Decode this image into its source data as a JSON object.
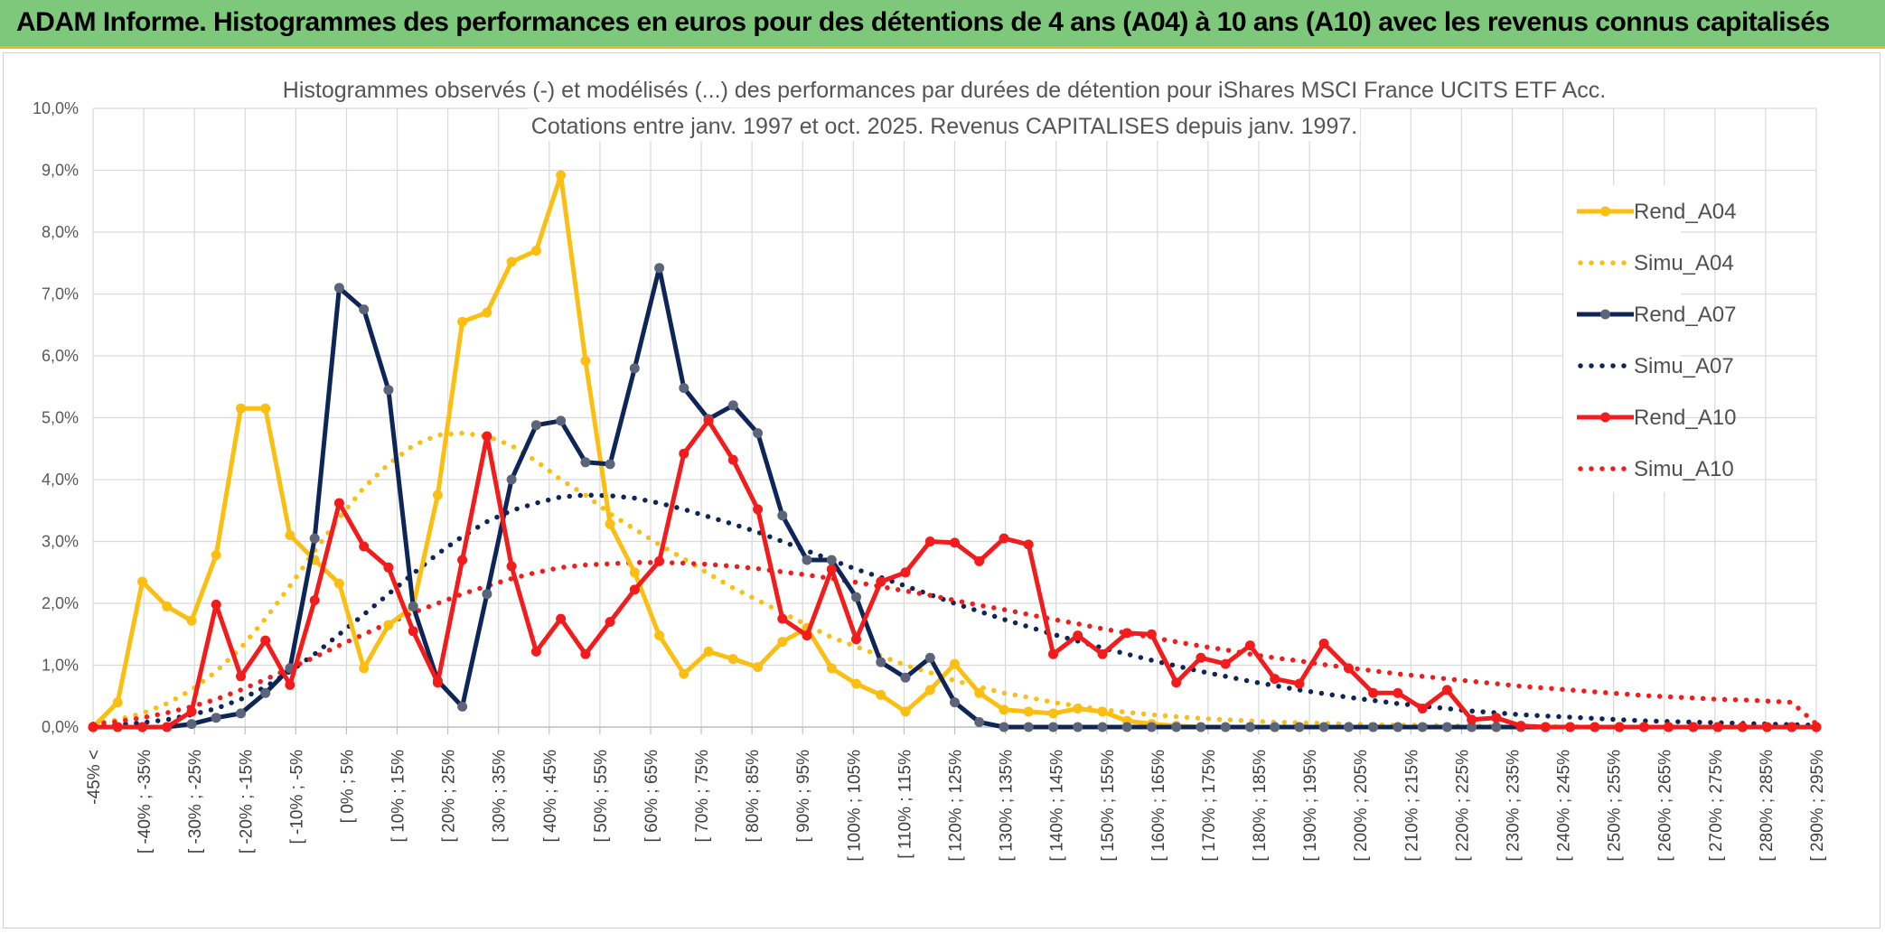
{
  "banner": {
    "title": "ADAM Informe. Histogrammes des performances en euros pour des détentions de 4 ans (A04) à 10 ans (A10) avec les revenus connus capitalisés"
  },
  "colors": {
    "banner_bg": "#7ec87c",
    "banner_border": "#e7b72b",
    "A04": "#fbbf14",
    "A07": "#0e2558",
    "A10": "#f21c1c",
    "grid": "#d9d9d9"
  },
  "chart_data": {
    "type": "line",
    "title_lines": [
      "Histogrammes observés (-) et modélisés (...) des performances par durées de détention pour iShares MSCI France UCITS ETF Acc.",
      "Cotations entre janv. 1997 et oct. 2025. Revenus CAPITALISES depuis janv. 1997."
    ],
    "ylim": [
      0,
      10
    ],
    "y_ticks": [
      "0,0%",
      "1,0%",
      "2,0%",
      "3,0%",
      "4,0%",
      "5,0%",
      "6,0%",
      "7,0%",
      "8,0%",
      "9,0%",
      "10,0%"
    ],
    "grid": true,
    "legend_position": "right",
    "x_labels": [
      "-45% <",
      "[ -40% ; -35%",
      "[ -30% ; -25%",
      "[ -20% ; -15%",
      "[ -10% ; -5%",
      "[ 0% ; 5%",
      "[ 10% ; 15%",
      "[ 20% ; 25%",
      "[ 30% ; 35%",
      "[ 40% ; 45%",
      "[ 50% ; 55%",
      "[ 60% ; 65%",
      "[ 70% ; 75%",
      "[ 80% ; 85%",
      "[ 90% ; 95%",
      "[ 100% ; 105%",
      "[ 110% ; 115%",
      "[ 120% ; 125%",
      "[ 130% ; 135%",
      "[ 140% ; 145%",
      "[ 150% ; 155%",
      "[ 160% ; 165%",
      "[ 170% ; 175%",
      "[ 180% ; 185%",
      "[ 190% ; 195%",
      "[ 200% ; 205%",
      "[ 210% ; 215%",
      "[ 220% ; 225%",
      "[ 230% ; 235%",
      "[ 240% ; 245%",
      "[ 250% ; 255%",
      "[ 260% ; 265%",
      "[ 270% ; 275%",
      "[ 280% ; 285%",
      "[ 290% ; 295%"
    ],
    "series": [
      {
        "name": "Rend_A04",
        "style": "solid",
        "color": "#fbbf14",
        "values": [
          0,
          0.4,
          2.35,
          1.95,
          1.72,
          2.78,
          5.15,
          5.15,
          3.1,
          2.7,
          2.32,
          0.95,
          1.65,
          1.95,
          3.75,
          6.55,
          6.7,
          7.52,
          7.7,
          8.92,
          5.92,
          3.28,
          2.5,
          1.48,
          0.86,
          1.22,
          1.1,
          0.97,
          1.38,
          1.6,
          0.95,
          0.7,
          0.52,
          0.25,
          0.6,
          1.02,
          0.55,
          0.28,
          0.25,
          0.22,
          0.3,
          0.25,
          0.1,
          0.05,
          0.02,
          0,
          0,
          0,
          0,
          0,
          0,
          0,
          0,
          0,
          0,
          0,
          0,
          0,
          0,
          0,
          0,
          0,
          0,
          0,
          0,
          0,
          0,
          0,
          0,
          0,
          0
        ]
      },
      {
        "name": "Simu_A04",
        "style": "dotted",
        "color": "#fbbf14",
        "values": [
          0.05,
          0.12,
          0.22,
          0.38,
          0.6,
          0.9,
          1.28,
          1.75,
          2.28,
          2.85,
          3.38,
          3.87,
          4.25,
          4.55,
          4.72,
          4.75,
          4.7,
          4.55,
          4.3,
          4.0,
          3.75,
          3.45,
          3.2,
          2.95,
          2.72,
          2.48,
          2.25,
          2.05,
          1.85,
          1.65,
          1.45,
          1.3,
          1.15,
          1.0,
          0.88,
          0.75,
          0.65,
          0.55,
          0.48,
          0.4,
          0.34,
          0.28,
          0.24,
          0.2,
          0.17,
          0.14,
          0.12,
          0.1,
          0.08,
          0.07,
          0.06,
          0.05,
          0.04,
          0.03,
          0.03,
          0.02,
          0.02,
          0.01,
          0.01,
          0.01,
          0.01,
          0,
          0,
          0,
          0,
          0,
          0,
          0,
          0,
          0,
          0
        ]
      },
      {
        "name": "Rend_A07",
        "style": "solid",
        "color": "#0e2558",
        "values": [
          0,
          0,
          0,
          0,
          0.05,
          0.15,
          0.22,
          0.55,
          0.95,
          3.05,
          7.1,
          6.75,
          5.45,
          1.95,
          0.75,
          0.33,
          2.15,
          4.0,
          4.88,
          4.95,
          4.28,
          4.25,
          5.8,
          7.42,
          5.48,
          4.98,
          5.2,
          4.75,
          3.42,
          2.7,
          2.7,
          2.1,
          1.05,
          0.8,
          1.12,
          0.4,
          0.08,
          0,
          0,
          0,
          0,
          0,
          0,
          0,
          0,
          0,
          0,
          0,
          0,
          0,
          0,
          0,
          0,
          0,
          0,
          0,
          0,
          0,
          0,
          0,
          0,
          0,
          0,
          0,
          0,
          0,
          0,
          0,
          0,
          0,
          0
        ]
      },
      {
        "name": "Simu_A07",
        "style": "dotted",
        "color": "#0e2558",
        "values": [
          0.02,
          0.04,
          0.07,
          0.12,
          0.2,
          0.3,
          0.45,
          0.65,
          0.9,
          1.18,
          1.5,
          1.82,
          2.15,
          2.48,
          2.8,
          3.08,
          3.32,
          3.5,
          3.62,
          3.72,
          3.75,
          3.74,
          3.7,
          3.62,
          3.52,
          3.4,
          3.28,
          3.15,
          3.0,
          2.85,
          2.7,
          2.55,
          2.42,
          2.28,
          2.14,
          2.0,
          1.87,
          1.74,
          1.62,
          1.5,
          1.39,
          1.28,
          1.18,
          1.08,
          0.99,
          0.9,
          0.82,
          0.74,
          0.67,
          0.6,
          0.54,
          0.48,
          0.43,
          0.38,
          0.34,
          0.3,
          0.26,
          0.23,
          0.2,
          0.18,
          0.16,
          0.14,
          0.12,
          0.1,
          0.09,
          0.08,
          0.07,
          0.06,
          0.05,
          0.04,
          0.03
        ]
      },
      {
        "name": "Rend_A10",
        "style": "solid",
        "color": "#f21c1c",
        "values": [
          0,
          0,
          0,
          0,
          0.25,
          1.98,
          0.82,
          1.4,
          0.68,
          2.05,
          3.62,
          2.92,
          2.58,
          1.55,
          0.72,
          2.7,
          4.7,
          2.6,
          1.22,
          1.75,
          1.18,
          1.7,
          2.22,
          2.68,
          4.42,
          4.95,
          4.32,
          3.52,
          1.75,
          1.48,
          2.55,
          1.42,
          2.35,
          2.5,
          3.0,
          2.98,
          2.68,
          3.05,
          2.95,
          1.18,
          1.48,
          1.18,
          1.52,
          1.5,
          0.72,
          1.12,
          1.02,
          1.32,
          0.78,
          0.7,
          1.35,
          0.95,
          0.55,
          0.55,
          0.3,
          0.6,
          0.12,
          0.15,
          0.02,
          0,
          0,
          0,
          0,
          0,
          0,
          0,
          0,
          0,
          0,
          0,
          0
        ]
      },
      {
        "name": "Simu_A10",
        "style": "dotted",
        "color": "#f21c1c",
        "values": [
          0.05,
          0.09,
          0.15,
          0.23,
          0.33,
          0.45,
          0.6,
          0.77,
          0.95,
          1.13,
          1.32,
          1.5,
          1.68,
          1.85,
          2.0,
          2.15,
          2.28,
          2.4,
          2.5,
          2.58,
          2.62,
          2.64,
          2.66,
          2.66,
          2.65,
          2.63,
          2.6,
          2.56,
          2.51,
          2.46,
          2.4,
          2.34,
          2.27,
          2.2,
          2.13,
          2.05,
          1.97,
          1.9,
          1.82,
          1.74,
          1.67,
          1.59,
          1.52,
          1.45,
          1.38,
          1.31,
          1.25,
          1.18,
          1.12,
          1.07,
          1.01,
          0.96,
          0.91,
          0.86,
          0.82,
          0.78,
          0.74,
          0.7,
          0.66,
          0.63,
          0.6,
          0.57,
          0.54,
          0.51,
          0.49,
          0.47,
          0.45,
          0.44,
          0.42,
          0.4,
          0.05
        ]
      }
    ]
  }
}
